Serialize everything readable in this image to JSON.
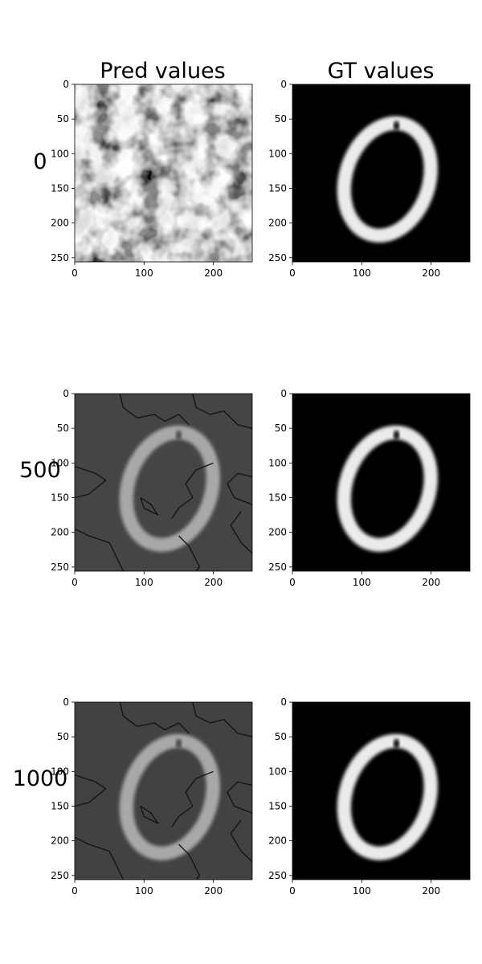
{
  "chart_data": {
    "type": "heatmap",
    "column_titles": [
      "Pred values",
      "GT values"
    ],
    "row_labels": [
      "0",
      "500",
      "1000"
    ],
    "colormap": "gray",
    "xlim": [
      0,
      256
    ],
    "ylim": [
      256,
      0
    ],
    "x_ticks": [
      "0",
      "100",
      "200"
    ],
    "y_ticks": [
      "0",
      "50",
      "100",
      "150",
      "200",
      "250"
    ],
    "target": {
      "shape": "ring (digit 0)",
      "center": [
        137,
        137
      ],
      "radius_x": 60,
      "radius_y": 83,
      "stroke_width": 20,
      "tilt_deg": 18,
      "notch_top_x": 150
    },
    "panels": [
      {
        "row": "0",
        "column": "Pred values",
        "content": "noise",
        "background_level": 0.55,
        "ring_level": 0.0
      },
      {
        "row": "0",
        "column": "GT values",
        "content": "ring",
        "background_level": 0.0,
        "ring_level": 0.92
      },
      {
        "row": "500",
        "column": "Pred values",
        "content": "ring_with_contours",
        "background_level": 0.27,
        "ring_level": 0.66
      },
      {
        "row": "500",
        "column": "GT values",
        "content": "ring",
        "background_level": 0.0,
        "ring_level": 0.92
      },
      {
        "row": "1000",
        "column": "Pred values",
        "content": "ring_with_contours",
        "background_level": 0.26,
        "ring_level": 0.66
      },
      {
        "row": "1000",
        "column": "GT values",
        "content": "ring",
        "background_level": 0.0,
        "ring_level": 0.92
      }
    ],
    "colors": {
      "background": "#ffffff",
      "axis": "#000000"
    }
  }
}
